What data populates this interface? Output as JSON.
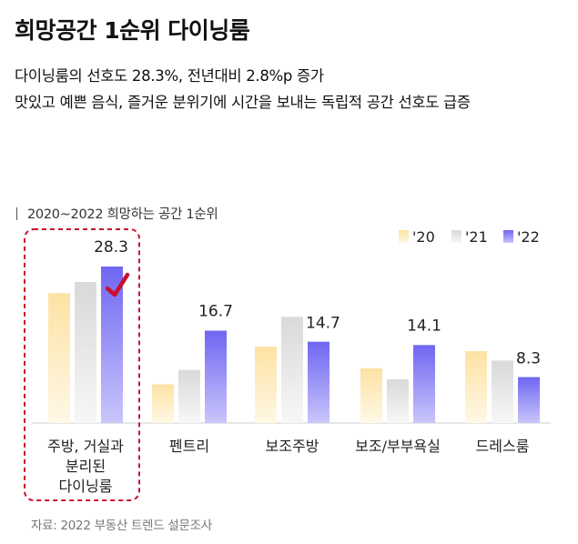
{
  "header": {
    "title": "희망공간 1순위 다이닝룸",
    "subtitle_1": "다이닝룸의 선호도 28.3%, 전년대비 2.8%p 증가",
    "subtitle_2": "맛있고 예쁜 음식, 즐거운 분위기에 시간을 보내는 독립적 공간 선호도 급증"
  },
  "chart_label": "2020~2022  희망하는 공간 1순위",
  "source": "자료: 2022 부동산 트렌드 설문조사",
  "colors": {
    "y2020": "#fde2a3",
    "y2021": "#d9d9d9",
    "y2022": "#6f66f2",
    "highlight": "#c8102e"
  },
  "chart_data": {
    "type": "bar",
    "title": "2020~2022  희망하는 공간 1순위",
    "categories": [
      [
        "주방, 거실과",
        "분리된",
        "다이닝룸"
      ],
      [
        "펜트리"
      ],
      [
        "보조주방"
      ],
      [
        "보조/부부욕실"
      ],
      [
        "드레스룸"
      ]
    ],
    "series": [
      {
        "name": "'20",
        "values": [
          23.5,
          7.0,
          13.8,
          9.9,
          13.0
        ]
      },
      {
        "name": "'21",
        "values": [
          25.5,
          9.6,
          19.2,
          7.9,
          11.3
        ]
      },
      {
        "name": "'22",
        "values": [
          28.3,
          16.7,
          14.7,
          14.1,
          8.3
        ]
      }
    ],
    "data_labels": [
      "28.3",
      "16.7",
      "14.7",
      "14.1",
      "8.3"
    ],
    "ylim": [
      0,
      36
    ],
    "grid": false,
    "legend_position": "top-right",
    "highlighted_category": 0
  }
}
